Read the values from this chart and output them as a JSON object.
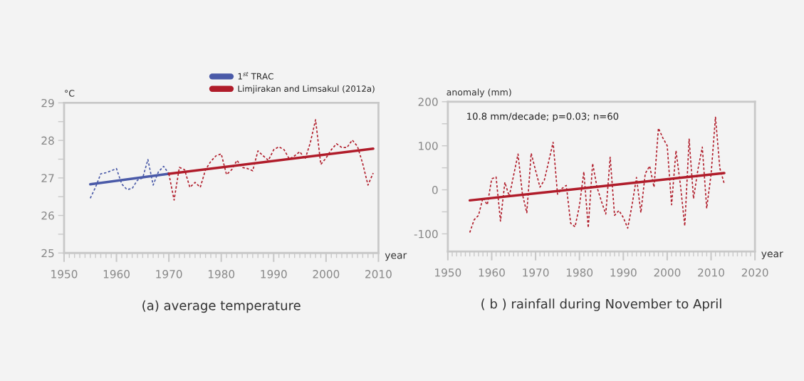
{
  "chart_data": [
    {
      "type": "line",
      "title": "(a) average temperature",
      "xlabel": "year",
      "ylabel": "°C",
      "xlim": [
        1950,
        2010
      ],
      "ylim": [
        25,
        29
      ],
      "xticks": [
        1950,
        1960,
        1970,
        1980,
        1990,
        2000,
        2010
      ],
      "yticks": [
        25,
        {
          "value": 25.5,
          "label": null
        },
        26,
        {
          "value": 26.5,
          "label": null
        },
        27,
        {
          "value": 27.5,
          "label": null
        },
        28,
        {
          "value": 28.5,
          "label": null
        },
        29
      ],
      "grid": false,
      "legend": "top right",
      "marker": "none",
      "series": [
        {
          "color": "#4a5aa8",
          "line_style": "dotted",
          "x": [
            1955,
            1956,
            1957,
            1958,
            1959,
            1960,
            1961,
            1962,
            1963,
            1964,
            1965,
            1966,
            1967,
            1968,
            1969,
            1970
          ],
          "values": [
            26.46,
            26.75,
            27.11,
            27.14,
            27.19,
            27.25,
            26.84,
            26.69,
            26.72,
            26.94,
            27.0,
            27.49,
            26.81,
            27.16,
            27.31,
            27.11
          ]
        },
        {
          "color": "#b01c2a",
          "line_style": "dotted",
          "x": [
            1970,
            1971,
            1972,
            1973,
            1974,
            1975,
            1976,
            1977,
            1978,
            1979,
            1980,
            1981,
            1982,
            1983,
            1984,
            1985,
            1986,
            1987,
            1988,
            1989,
            1990,
            1991,
            1992,
            1993,
            1994,
            1995,
            1996,
            1997,
            1998,
            1999,
            2000,
            2001,
            2002,
            2003,
            2004,
            2005,
            2006,
            2007,
            2008,
            2009
          ],
          "values": [
            27.11,
            26.41,
            27.28,
            27.22,
            26.75,
            26.88,
            26.75,
            27.22,
            27.44,
            27.59,
            27.64,
            27.09,
            27.22,
            27.47,
            27.28,
            27.25,
            27.19,
            27.72,
            27.59,
            27.47,
            27.75,
            27.83,
            27.75,
            27.5,
            27.59,
            27.7,
            27.5,
            27.94,
            28.55,
            27.36,
            27.53,
            27.75,
            27.91,
            27.81,
            27.81,
            28.01,
            27.84,
            27.38,
            26.81,
            27.13
          ]
        },
        {
          "name": "1$^{st}$ TRAC",
          "color": "#4a5aa8",
          "line_style": "solid",
          "x": [
            1955,
            1970
          ],
          "values": [
            26.83,
            27.11
          ]
        },
        {
          "name": "Limjirakan and Limsakul (2012a)",
          "color": "#b01c2a",
          "line_style": "solid",
          "x": [
            1970,
            2009
          ],
          "values": [
            27.11,
            27.78
          ]
        }
      ]
    },
    {
      "type": "line",
      "title": "( b ) rainfall during November to April",
      "xlabel": "year",
      "ylabel": "anomaly (mm)",
      "xlim": [
        1950,
        2020
      ],
      "ylim": [
        -140,
        200
      ],
      "xticks": [
        1950,
        1960,
        1970,
        1980,
        1990,
        2000,
        2010,
        2020
      ],
      "yticks": [
        {
          "value": -100,
          "label": "-100"
        },
        {
          "value": -50,
          "label": null
        },
        0,
        {
          "value": 50,
          "label": null
        },
        100,
        {
          "value": 150,
          "label": null
        },
        200
      ],
      "grid": false,
      "legend": false,
      "marker": "none",
      "annotations": [
        "10.8 mm/decade; p=0.03; n=60"
      ],
      "series": [
        {
          "color": "#b01c2a",
          "line_style": "dotted",
          "x": [
            1955,
            1956,
            1957,
            1958,
            1959,
            1960,
            1961,
            1962,
            1963,
            1964,
            1965,
            1966,
            1967,
            1968,
            1969,
            1970,
            1971,
            1972,
            1973,
            1974,
            1975,
            1976,
            1977,
            1978,
            1979,
            1980,
            1981,
            1982,
            1983,
            1984,
            1985,
            1986,
            1987,
            1988,
            1989,
            1990,
            1991,
            1992,
            1993,
            1994,
            1995,
            1996,
            1997,
            1998,
            1999,
            2000,
            2001,
            2002,
            2003,
            2004,
            2005,
            2006,
            2007,
            2008,
            2009,
            2010,
            2011,
            2012,
            2013
          ],
          "values": [
            -97,
            -68,
            -58,
            -18,
            -34,
            25,
            29,
            -71,
            17,
            -15,
            33,
            81,
            -10,
            -52,
            83,
            44,
            6,
            22,
            65,
            108,
            -10,
            3,
            10,
            -76,
            -84,
            -36,
            41,
            -86,
            60,
            6,
            -26,
            -55,
            74,
            -58,
            -47,
            -63,
            -87,
            -34,
            28,
            -52,
            37,
            54,
            6,
            140,
            118,
            100,
            -34,
            89,
            12,
            -82,
            115,
            -20,
            46,
            97,
            -42,
            35,
            165,
            49,
            14
          ]
        },
        {
          "color": "#b01c2a",
          "line_style": "solid",
          "x": [
            1955,
            2013
          ],
          "values": [
            -24,
            38
          ]
        }
      ]
    }
  ]
}
